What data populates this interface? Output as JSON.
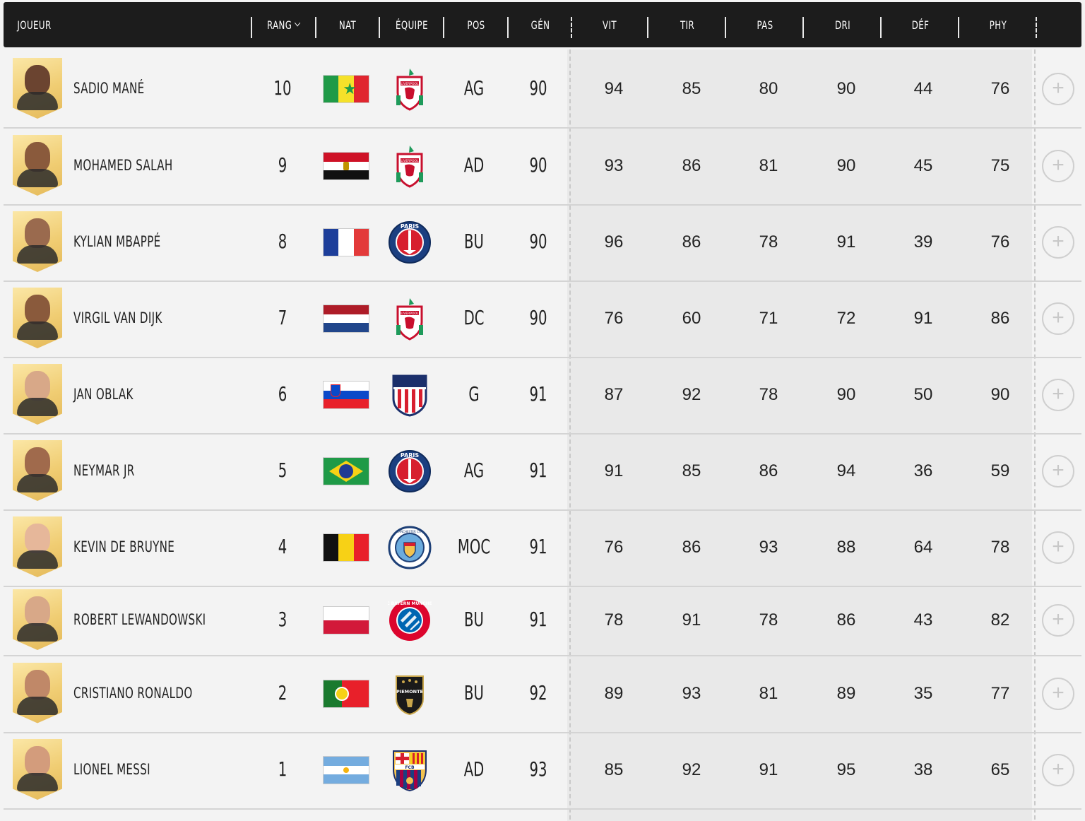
{
  "header": {
    "columns": [
      "JOUEUR",
      "RANG",
      "NAT",
      "ÉQUIPE",
      "POS",
      "GÉN",
      "VIT",
      "TIR",
      "PAS",
      "DRI",
      "DÉF",
      "PHY"
    ],
    "sort_column": "RANG"
  },
  "players": [
    {
      "name": "SADIO MANÉ",
      "rank": "10",
      "nat": "Senegal",
      "team": "Liverpool",
      "pos": "AG",
      "gen": "90",
      "vit": "94",
      "tir": "85",
      "pas": "80",
      "dri": "90",
      "def": "44",
      "phy": "76"
    },
    {
      "name": "MOHAMED SALAH",
      "rank": "9",
      "nat": "Egypt",
      "team": "Liverpool",
      "pos": "AD",
      "gen": "90",
      "vit": "93",
      "tir": "86",
      "pas": "81",
      "dri": "90",
      "def": "45",
      "phy": "75"
    },
    {
      "name": "KYLIAN MBAPPÉ",
      "rank": "8",
      "nat": "France",
      "team": "PSG",
      "pos": "BU",
      "gen": "90",
      "vit": "96",
      "tir": "86",
      "pas": "78",
      "dri": "91",
      "def": "39",
      "phy": "76"
    },
    {
      "name": "VIRGIL VAN DIJK",
      "rank": "7",
      "nat": "Netherlands",
      "team": "Liverpool",
      "pos": "DC",
      "gen": "90",
      "vit": "76",
      "tir": "60",
      "pas": "71",
      "dri": "72",
      "def": "91",
      "phy": "86"
    },
    {
      "name": "JAN OBLAK",
      "rank": "6",
      "nat": "Slovenia",
      "team": "Atletico",
      "pos": "G",
      "gen": "91",
      "vit": "87",
      "tir": "92",
      "pas": "78",
      "dri": "90",
      "def": "50",
      "phy": "90"
    },
    {
      "name": "NEYMAR JR",
      "rank": "5",
      "nat": "Brazil",
      "team": "PSG",
      "pos": "AG",
      "gen": "91",
      "vit": "91",
      "tir": "85",
      "pas": "86",
      "dri": "94",
      "def": "36",
      "phy": "59"
    },
    {
      "name": "KEVIN DE BRUYNE",
      "rank": "4",
      "nat": "Belgium",
      "team": "ManCity",
      "pos": "MOC",
      "gen": "91",
      "vit": "76",
      "tir": "86",
      "pas": "93",
      "dri": "88",
      "def": "64",
      "phy": "78"
    },
    {
      "name": "ROBERT LEWANDOWSKI",
      "rank": "3",
      "nat": "Poland",
      "team": "Bayern",
      "pos": "BU",
      "gen": "91",
      "vit": "78",
      "tir": "91",
      "pas": "78",
      "dri": "86",
      "def": "43",
      "phy": "82"
    },
    {
      "name": "CRISTIANO RONALDO",
      "rank": "2",
      "nat": "Portugal",
      "team": "Piemonte",
      "pos": "BU",
      "gen": "92",
      "vit": "89",
      "tir": "93",
      "pas": "81",
      "dri": "89",
      "def": "35",
      "phy": "77"
    },
    {
      "name": "LIONEL MESSI",
      "rank": "1",
      "nat": "Argentina",
      "team": "Barcelona",
      "pos": "AD",
      "gen": "93",
      "vit": "85",
      "tir": "92",
      "pas": "91",
      "dri": "95",
      "def": "38",
      "phy": "65"
    }
  ],
  "crest_text": {
    "liverpool": "LIVERPOOL",
    "psg": "PARIS",
    "mancity": "MANCHESTER CITY",
    "bayern": "FC BAYERN MÜNCHEN",
    "piemonte": "PIEMONTE",
    "barcelona": "FCB"
  },
  "colors": {
    "header_bg": "#1c1c1c",
    "card_gold": "#f0cd73"
  },
  "icons": {
    "add": "plus-circle-icon",
    "sort": "chevron-down-icon"
  }
}
